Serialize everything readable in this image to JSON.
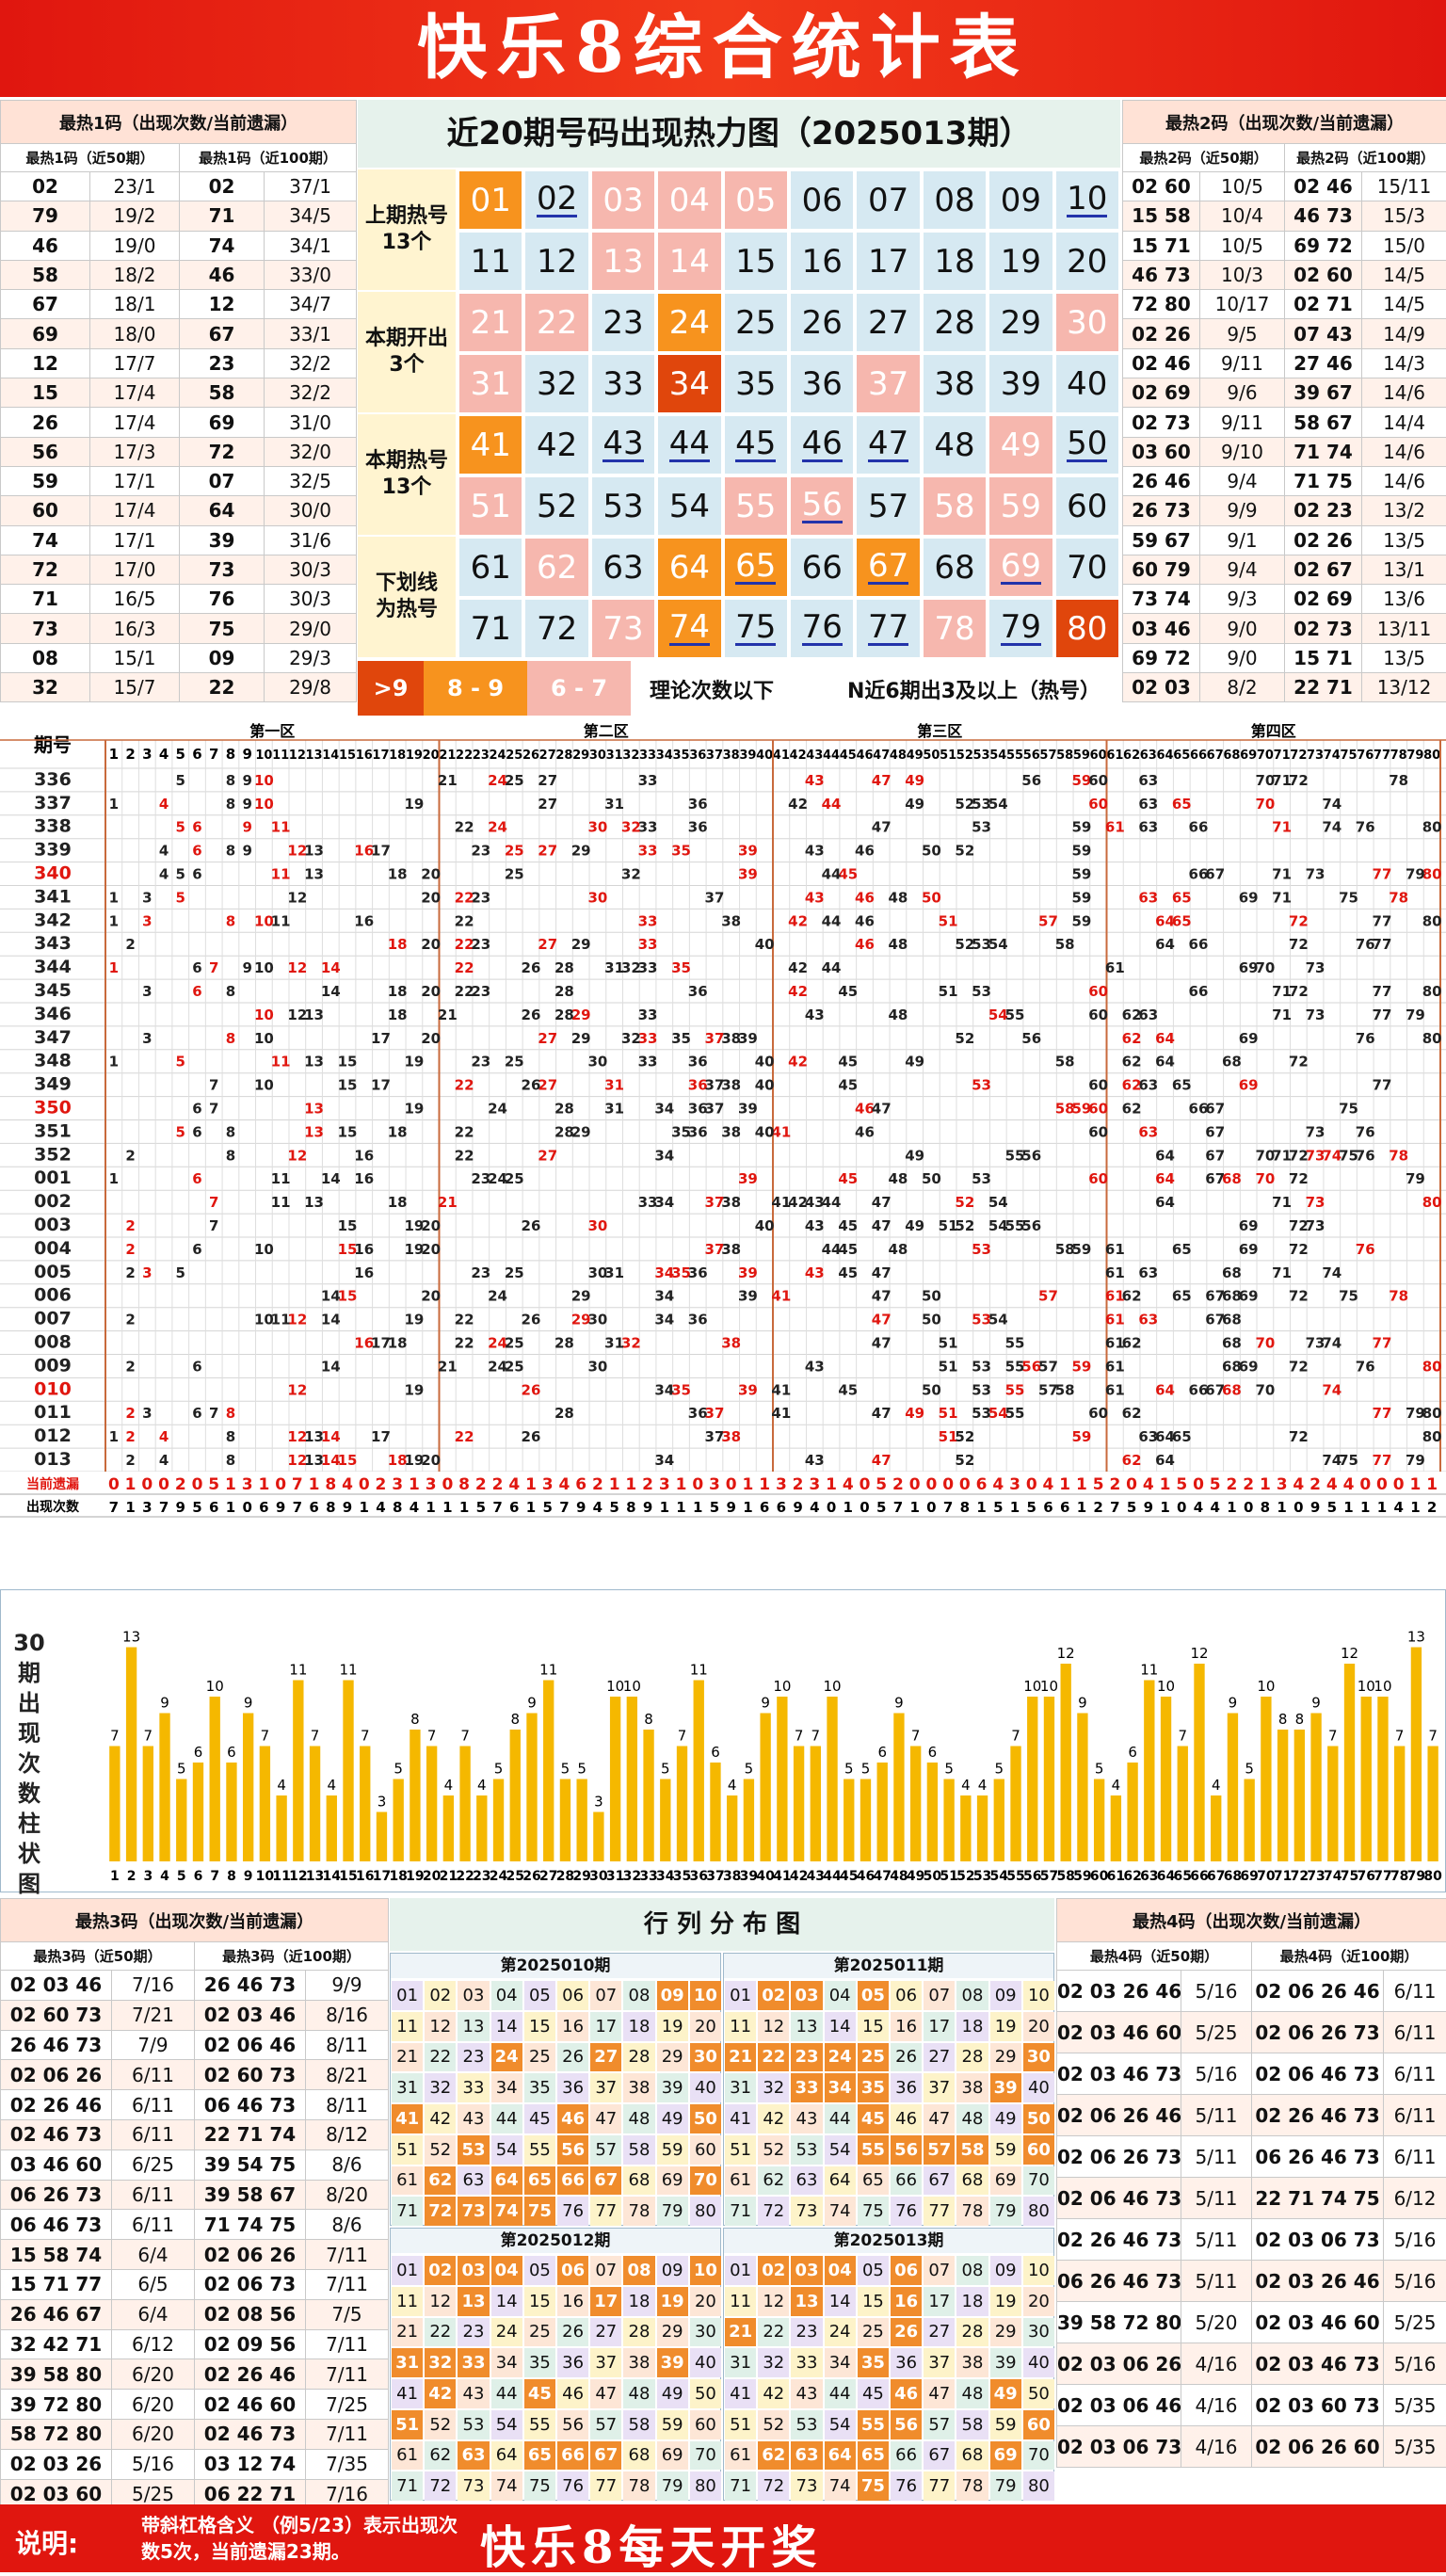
{
  "title": "快乐8综合统计表",
  "hot1": {
    "title": "最热1码（出现次数/当前遗漏）",
    "col_a": "最热1码（近50期）",
    "col_b": "最热1码（近100期）",
    "rows": [
      [
        "02",
        "23/1",
        "02",
        "37/1"
      ],
      [
        "79",
        "19/2",
        "71",
        "34/5"
      ],
      [
        "46",
        "19/0",
        "74",
        "34/1"
      ],
      [
        "58",
        "18/2",
        "46",
        "33/0"
      ],
      [
        "67",
        "18/1",
        "12",
        "34/7"
      ],
      [
        "69",
        "18/0",
        "67",
        "33/1"
      ],
      [
        "12",
        "17/7",
        "23",
        "32/2"
      ],
      [
        "15",
        "17/4",
        "58",
        "32/2"
      ],
      [
        "26",
        "17/4",
        "69",
        "31/0"
      ],
      [
        "56",
        "17/3",
        "72",
        "32/0"
      ],
      [
        "59",
        "17/1",
        "07",
        "32/5"
      ],
      [
        "60",
        "17/4",
        "64",
        "30/0"
      ],
      [
        "74",
        "17/1",
        "39",
        "31/6"
      ],
      [
        "72",
        "17/0",
        "73",
        "30/3"
      ],
      [
        "71",
        "16/5",
        "76",
        "30/3"
      ],
      [
        "73",
        "16/3",
        "75",
        "29/0"
      ],
      [
        "08",
        "15/1",
        "09",
        "29/3"
      ],
      [
        "32",
        "15/7",
        "22",
        "29/8"
      ]
    ]
  },
  "hot2": {
    "title": "最热2码（出现次数/当前遗漏）",
    "col_a": "最热2码（近50期）",
    "col_b": "最热2码（近100期）",
    "rows": [
      [
        "02 60",
        "10/5",
        "02 46",
        "15/11"
      ],
      [
        "15 58",
        "10/4",
        "46 73",
        "15/3"
      ],
      [
        "15 71",
        "10/5",
        "69 72",
        "15/0"
      ],
      [
        "46 73",
        "10/3",
        "02 60",
        "14/5"
      ],
      [
        "72 80",
        "10/17",
        "02 71",
        "14/5"
      ],
      [
        "02 26",
        "9/5",
        "07 43",
        "14/9"
      ],
      [
        "02 46",
        "9/11",
        "27 46",
        "14/3"
      ],
      [
        "02 69",
        "9/6",
        "39 67",
        "14/6"
      ],
      [
        "02 73",
        "9/11",
        "58 67",
        "14/4"
      ],
      [
        "03 60",
        "9/10",
        "71 74",
        "14/6"
      ],
      [
        "26 46",
        "9/4",
        "71 75",
        "14/6"
      ],
      [
        "26 73",
        "9/9",
        "02 23",
        "13/2"
      ],
      [
        "59 67",
        "9/1",
        "02 26",
        "13/5"
      ],
      [
        "60 79",
        "9/4",
        "02 67",
        "13/1"
      ],
      [
        "73 74",
        "9/3",
        "02 69",
        "13/6"
      ],
      [
        "03 46",
        "9/0",
        "02 73",
        "13/11"
      ],
      [
        "69 72",
        "9/0",
        "15 71",
        "13/5"
      ],
      [
        "02 03",
        "8/2",
        "22 71",
        "13/12"
      ]
    ]
  },
  "heat": {
    "title": "近20期号码出现热力图（2025013期）",
    "labels": [
      "上期热号\n13个",
      "本期开出\n3个",
      "本期热号\n13个",
      "下划线\n为热号"
    ],
    "legend": [
      ">9",
      "8 - 9",
      "6 - 7",
      "理论次数以下",
      "N近6期出3及以上（热号）"
    ],
    "numbers": [
      "01",
      "02",
      "03",
      "04",
      "05",
      "06",
      "07",
      "08",
      "09",
      "10",
      "11",
      "12",
      "13",
      "14",
      "15",
      "16",
      "17",
      "18",
      "19",
      "20",
      "21",
      "22",
      "23",
      "24",
      "25",
      "26",
      "27",
      "28",
      "29",
      "30",
      "31",
      "32",
      "33",
      "34",
      "35",
      "36",
      "37",
      "38",
      "39",
      "40",
      "41",
      "42",
      "43",
      "44",
      "45",
      "46",
      "47",
      "48",
      "49",
      "50",
      "51",
      "52",
      "53",
      "54",
      "55",
      "56",
      "57",
      "58",
      "59",
      "60",
      "61",
      "62",
      "63",
      "64",
      "65",
      "66",
      "67",
      "68",
      "69",
      "70",
      "71",
      "72",
      "73",
      "74",
      "75",
      "76",
      "77",
      "78",
      "79",
      "80"
    ],
    "styles": "0o0ppp0000000pp00b000pp0o00bbbpp00r00p000o0uu0u00p0p000pp0pp00p0oo0o0p000po0uup0r0",
    "underline": [
      2,
      10,
      45,
      46,
      47,
      50,
      56,
      65,
      67,
      69,
      74,
      75,
      79
    ]
  },
  "trend": {
    "zones": [
      "第一区",
      "第二区",
      "第三区",
      "第四区"
    ],
    "col_header": "期号",
    "periods": [
      "336",
      "337",
      "338",
      "339",
      "340",
      "341",
      "342",
      "343",
      "344",
      "345",
      "346",
      "347",
      "348",
      "349",
      "350",
      "351",
      "352",
      "001",
      "002",
      "003",
      "004",
      "005",
      "006",
      "007",
      "008",
      "009",
      "010",
      "011",
      "012",
      "013"
    ],
    "red_periods": [
      "340",
      "350",
      "010"
    ],
    "miss_label": "当前遗漏",
    "count_label": "出现次数",
    "miss": "01002051310718402313082241346211231030113231405200006430411520415052213424400011902503105213128",
    "count": "7137956106976891484111576157945891115916694010571078151566127591044108109511141271215100997512"
  },
  "bars": {
    "label": "30期出现次数柱状图",
    "values": [
      7,
      13,
      7,
      9,
      5,
      6,
      10,
      6,
      9,
      7,
      4,
      11,
      7,
      4,
      11,
      7,
      3,
      5,
      8,
      7,
      4,
      7,
      4,
      5,
      8,
      9,
      11,
      5,
      5,
      3,
      10,
      10,
      8,
      5,
      7,
      11,
      6,
      4,
      5,
      9,
      10,
      7,
      7,
      10,
      5,
      5,
      6,
      9,
      7,
      6,
      5,
      4,
      4,
      5,
      7,
      10,
      10,
      12,
      9,
      5,
      4,
      6,
      11,
      10,
      7,
      12,
      4,
      9,
      5,
      10,
      8,
      8,
      9,
      7,
      12,
      10,
      10,
      7,
      13,
      7
    ]
  },
  "hot3": {
    "title": "最热3码（出现次数/当前遗漏）",
    "col_a": "最热3码（近50期）",
    "col_b": "最热3码（近100期）",
    "rows": [
      [
        "02 03 46",
        "7/16",
        "26 46 73",
        "9/9"
      ],
      [
        "02 60 73",
        "7/21",
        "02 03 46",
        "8/16"
      ],
      [
        "26 46 73",
        "7/9",
        "02 06 46",
        "8/11"
      ],
      [
        "02 06 26",
        "6/11",
        "02 60 73",
        "8/21"
      ],
      [
        "02 26 46",
        "6/11",
        "06 46 73",
        "8/11"
      ],
      [
        "02 46 73",
        "6/11",
        "22 71 74",
        "8/12"
      ],
      [
        "03 46 60",
        "6/25",
        "39 54 75",
        "8/6"
      ],
      [
        "06 26 73",
        "6/11",
        "39 58 67",
        "8/20"
      ],
      [
        "06 46 73",
        "6/11",
        "71 74 75",
        "8/6"
      ],
      [
        "15 58 74",
        "6/4",
        "02 06 26",
        "7/11"
      ],
      [
        "15 71 77",
        "6/5",
        "02 06 73",
        "7/11"
      ],
      [
        "26 46 67",
        "6/4",
        "02 08 56",
        "7/5"
      ],
      [
        "32 42 71",
        "6/12",
        "02 09 56",
        "7/11"
      ],
      [
        "39 58 80",
        "6/20",
        "02 26 46",
        "7/11"
      ],
      [
        "39 72 80",
        "6/20",
        "02 46 60",
        "7/25"
      ],
      [
        "58 72 80",
        "6/20",
        "02 46 73",
        "7/11"
      ],
      [
        "02 03 26",
        "5/16",
        "03 12 74",
        "7/35"
      ],
      [
        "02 03 60",
        "5/25",
        "06 22 71",
        "7/16"
      ]
    ]
  },
  "hot4": {
    "title": "最热4码（出现次数/当前遗漏）",
    "col_a": "最热4码（近50期）",
    "col_b": "最热4码（近100期）",
    "rows": [
      [
        "02 03 26 46",
        "5/16",
        "02 06 26 46",
        "6/11"
      ],
      [
        "02 03 46 60",
        "5/25",
        "02 06 26 73",
        "6/11"
      ],
      [
        "02 03 46 73",
        "5/16",
        "02 06 46 73",
        "6/11"
      ],
      [
        "02 06 26 46",
        "5/11",
        "02 26 46 73",
        "6/11"
      ],
      [
        "02 06 26 73",
        "5/11",
        "06 26 46 73",
        "6/11"
      ],
      [
        "02 06 46 73",
        "5/11",
        "22 71 74 75",
        "6/12"
      ],
      [
        "02 26 46 73",
        "5/11",
        "02 03 06 73",
        "5/16"
      ],
      [
        "06 26 46 73",
        "5/11",
        "02 03 26 46",
        "5/16"
      ],
      [
        "39 58 72 80",
        "5/20",
        "02 03 46 60",
        "5/25"
      ],
      [
        "02 03 06 26",
        "4/16",
        "02 03 46 73",
        "5/16"
      ],
      [
        "02 03 06 46",
        "4/16",
        "02 03 60 73",
        "5/35"
      ],
      [
        "02 03 06 73",
        "4/16",
        "02 06 26 60",
        "5/35"
      ]
    ]
  },
  "rowcol": {
    "title": "行 列 分 布 图",
    "panels": [
      "第2025010期",
      "第2025011期",
      "第2025012期",
      "第2025013期"
    ]
  },
  "footer": {
    "note_label": "说明:",
    "note_text": "带斜杠格含义 （例5/23）表示出现次数5次，当前遗漏23期。",
    "slogan": "快乐8每天开奖"
  },
  "colors": {
    "red": "#e0160f",
    "orange": "#f7931e",
    "pink": "#f6b7ae",
    "dark": "#e0460c",
    "bar": "#f5b800"
  }
}
